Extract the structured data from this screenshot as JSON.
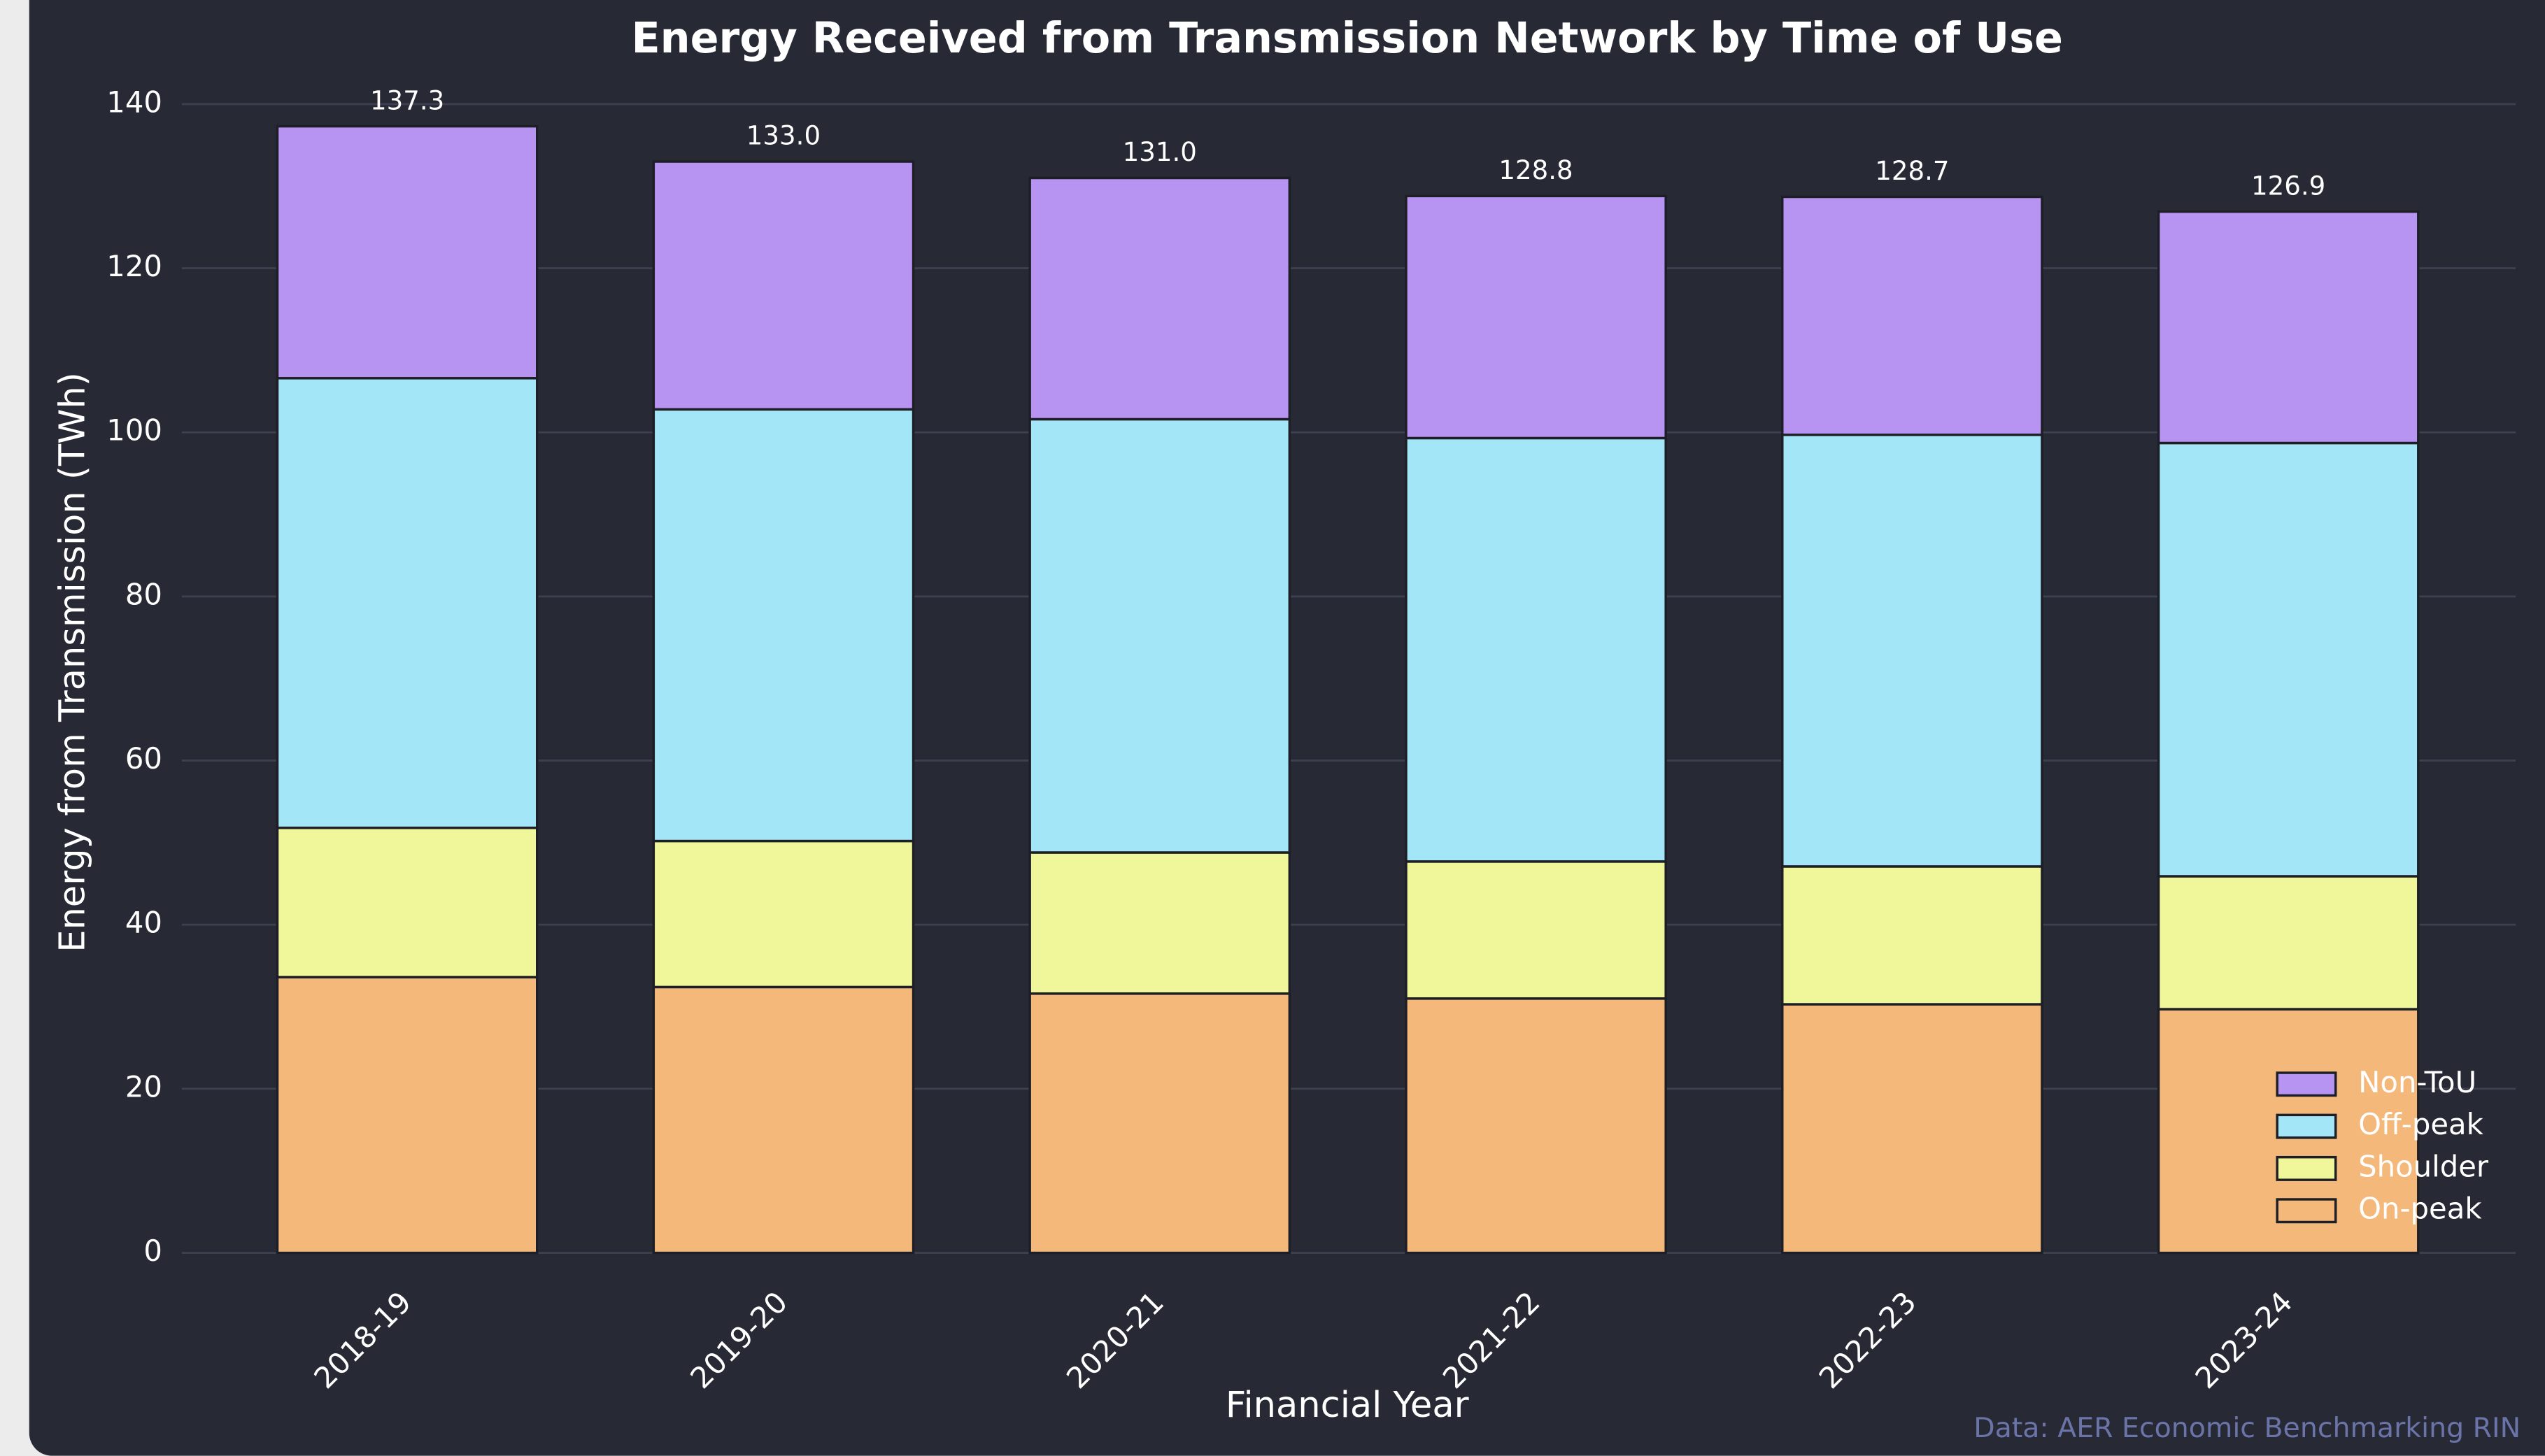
{
  "chart_data": {
    "type": "stacked_bar",
    "title": "Energy Received from Transmission Network by Time of Use",
    "x_label": "Financial Year",
    "y_label": "Energy from Transmission (TWh)",
    "source": "Data: AER Economic Benchmarking RIN",
    "categories": [
      "2018-19",
      "2019-20",
      "2020-21",
      "2021-22",
      "2022-23",
      "2023-24"
    ],
    "series": [
      {
        "name": "On-peak",
        "color": "#f4b97a",
        "values": [
          33.6,
          32.4,
          31.6,
          31.0,
          30.3,
          29.7
        ]
      },
      {
        "name": "Shoulder",
        "color": "#f0f79a",
        "values": [
          18.2,
          17.8,
          17.2,
          16.7,
          16.8,
          16.2
        ]
      },
      {
        "name": "Off-peak",
        "color": "#a3e6f8",
        "values": [
          54.8,
          52.6,
          52.8,
          51.6,
          52.6,
          52.8
        ]
      },
      {
        "name": "Non-ToU",
        "color": "#b794f2",
        "values": [
          30.7,
          30.2,
          29.4,
          29.5,
          29.0,
          28.2
        ]
      }
    ],
    "totals": {
      "values": [
        137.3,
        133.0,
        131.0,
        128.8,
        128.7,
        126.9
      ],
      "value_labels": [
        "137.3",
        "133.0",
        "131.0",
        "128.8",
        "128.7",
        "126.9"
      ]
    },
    "ylim": [
      0,
      140
    ],
    "yticks": [
      0,
      20,
      40,
      60,
      80,
      100,
      120,
      140
    ],
    "grid": true,
    "legend": "lower right"
  }
}
